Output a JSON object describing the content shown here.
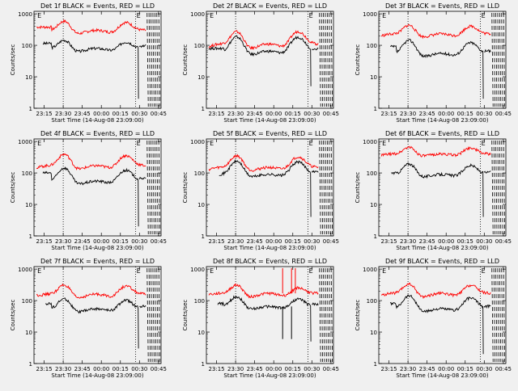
{
  "chart_data": {
    "type": "line",
    "tick_labels_x": [
      "23:15",
      "23:30",
      "23:45",
      "00:00",
      "00:15",
      "00:30",
      "00:45"
    ],
    "tick_labels_y": [
      "1",
      "10",
      "100",
      "1000"
    ],
    "ylabel": "Counts/sec",
    "xlabel": "Start Time (14-Aug-08 23:09:00)",
    "marker_text": "E",
    "xlim_minutes": [
      -2,
      98
    ],
    "ylim_log10": [
      0,
      3.08
    ],
    "colors": {
      "events": "#000000",
      "lld": "#ff0000",
      "background": "#f0f0f0"
    },
    "panels": [
      {
        "title": "Det 1f BLACK = Events, RED = LLD",
        "lld": {
          "base": 380,
          "flatlo": 215,
          "flathi": 300,
          "peak1": 560,
          "peak2": 520,
          "end": 250
        },
        "events": {
          "base": 115,
          "flatlo": 58,
          "flathi": 80,
          "peak1": 140,
          "peak2": 125,
          "drop": 2
        },
        "lld_start": 0,
        "events_start": 5
      },
      {
        "title": "Det 2f BLACK = Events, RED = LLD",
        "lld": {
          "base": 90,
          "flatlo": 70,
          "flathi": 110,
          "peak1": 260,
          "peak2": 270,
          "end": 100
        },
        "events": {
          "base": 80,
          "flatlo": 45,
          "flathi": 65,
          "peak1": 180,
          "peak2": 180,
          "drop": 5
        },
        "lld_start": 0,
        "events_start": 0
      },
      {
        "title": "Det 3f BLACK = Events, RED = LLD",
        "lld": {
          "base": 200,
          "flatlo": 170,
          "flathi": 230,
          "peak1": 420,
          "peak2": 400,
          "end": 170
        },
        "events": {
          "base": 90,
          "flatlo": 40,
          "flathi": 55,
          "peak1": 140,
          "peak2": 120,
          "drop": 2
        },
        "lld_start": 0,
        "events_start": 7
      },
      {
        "title": "Det 4f BLACK = Events, RED = LLD",
        "lld": {
          "base": 150,
          "flatlo": 120,
          "flathi": 170,
          "peak1": 380,
          "peak2": 350,
          "end": 130
        },
        "events": {
          "base": 100,
          "flatlo": 40,
          "flathi": 55,
          "peak1": 140,
          "peak2": 120,
          "drop": 2
        },
        "lld_start": 0,
        "events_start": 5
      },
      {
        "title": "Det 5f BLACK = Events, RED = LLD",
        "lld": {
          "base": 120,
          "flatlo": 110,
          "flathi": 150,
          "peak1": 340,
          "peak2": 320,
          "end": 120
        },
        "events": {
          "base": 80,
          "flatlo": 70,
          "flathi": 90,
          "peak1": 230,
          "peak2": 220,
          "drop": 4
        },
        "lld_start": 0,
        "events_start": 8
      },
      {
        "title": "Det 6f BLACK = Events, RED = LLD",
        "lld": {
          "base": 350,
          "flatlo": 330,
          "flathi": 400,
          "peak1": 640,
          "peak2": 620,
          "end": 380
        },
        "events": {
          "base": 100,
          "flatlo": 70,
          "flathi": 90,
          "peak1": 190,
          "peak2": 170,
          "drop": 4
        },
        "lld_start": 0,
        "events_start": 8
      },
      {
        "title": "Det 7f BLACK = Events, RED = LLD",
        "lld": {
          "base": 150,
          "flatlo": 110,
          "flathi": 160,
          "peak1": 300,
          "peak2": 280,
          "end": 140
        },
        "events": {
          "base": 80,
          "flatlo": 40,
          "flathi": 55,
          "peak1": 110,
          "peak2": 100,
          "drop": 3
        },
        "lld_start": 0,
        "events_start": 7
      },
      {
        "title": "Det 8f BLACK = Events, RED = LLD",
        "lld": {
          "base": 160,
          "flatlo": 120,
          "flathi": 170,
          "peak1": 300,
          "peak2": 250,
          "end": 180
        },
        "events": {
          "base": 80,
          "flatlo": 50,
          "flathi": 65,
          "peak1": 130,
          "peak2": 110,
          "drop": 5
        },
        "lld_start": 0,
        "events_start": 7,
        "spikes": true
      },
      {
        "title": "Det 9f BLACK = Events, RED = LLD",
        "lld": {
          "base": 150,
          "flatlo": 120,
          "flathi": 170,
          "peak1": 320,
          "peak2": 300,
          "end": 140
        },
        "events": {
          "base": 80,
          "flatlo": 40,
          "flathi": 55,
          "peak1": 140,
          "peak2": 120,
          "drop": 2
        },
        "lld_start": 0,
        "events_start": 7
      }
    ]
  }
}
